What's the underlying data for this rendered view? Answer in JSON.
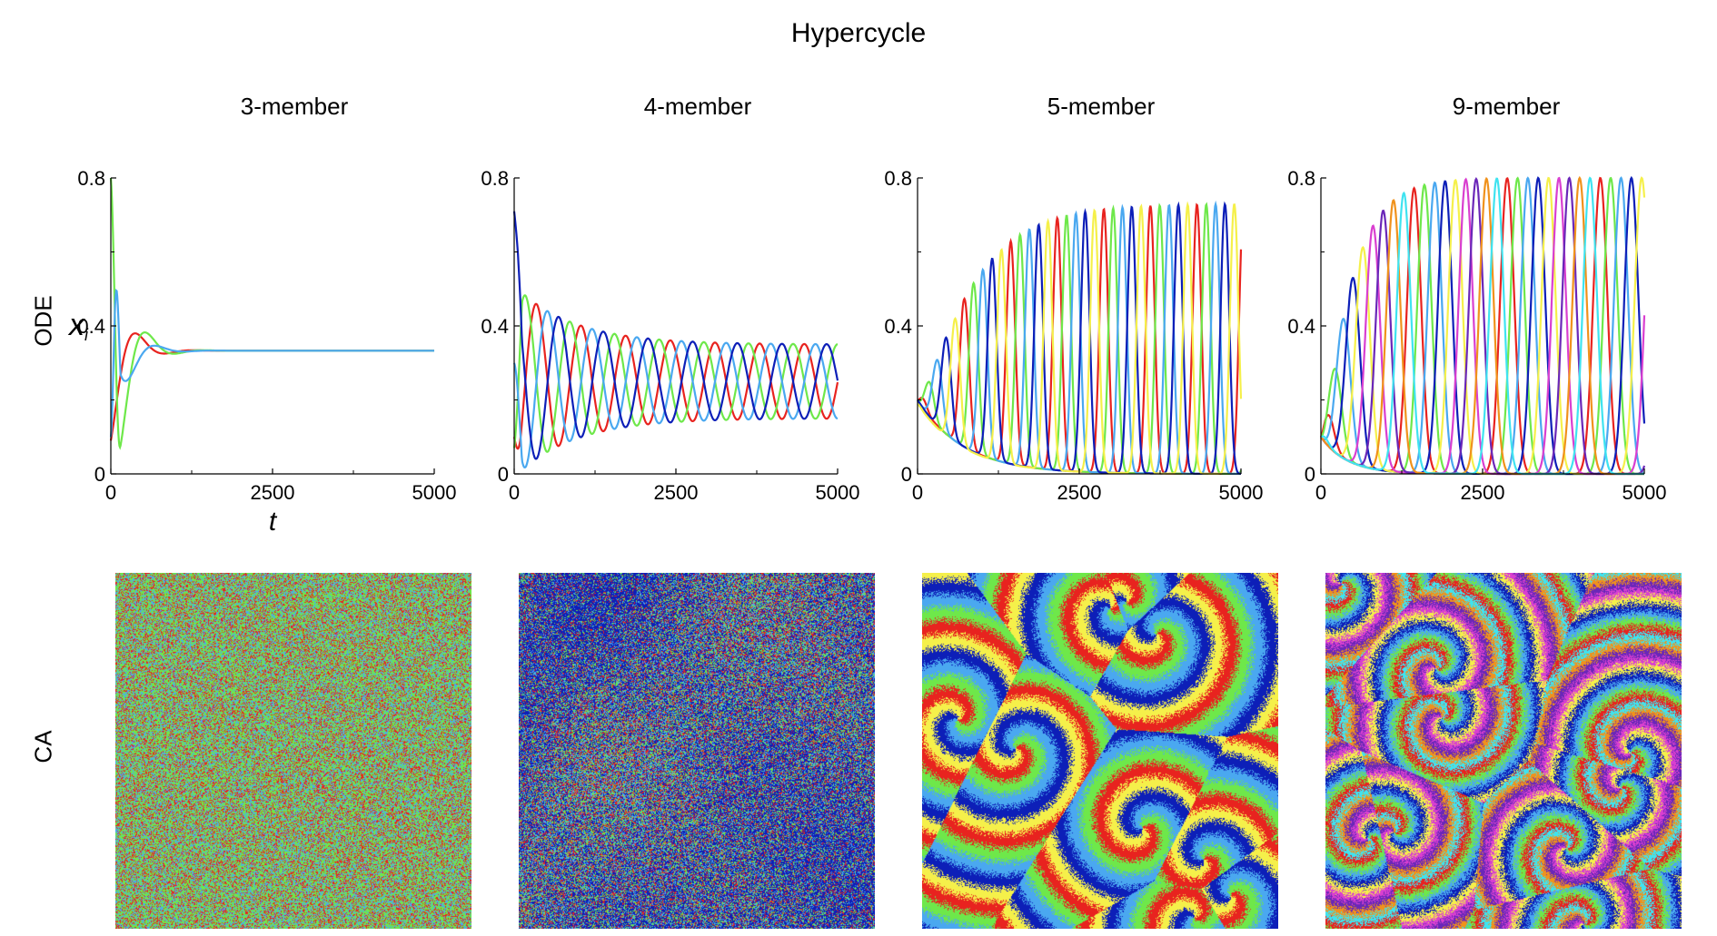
{
  "figure": {
    "title": "Hypercycle",
    "row_labels": [
      "ODE",
      "CA"
    ],
    "column_titles": [
      "3-member",
      "4-member",
      "5-member",
      "9-member"
    ],
    "axis": {
      "xlabel": "t",
      "ylabel": "x",
      "ylabel_sub": "i",
      "xticks": [
        "0",
        "2500",
        "5000"
      ],
      "yticks": [
        "0",
        "0.4",
        "0.8"
      ]
    }
  },
  "colors": {
    "red": "#e8231f",
    "green": "#6ee84a",
    "lightblue": "#4aa8f0",
    "darkblue": "#0d1fb8",
    "yellow": "#f5f04a",
    "magenta": "#d93fd0",
    "purple": "#6a27b8",
    "orange": "#f0921c",
    "cyan": "#3fe3f0"
  },
  "chart_data": [
    {
      "type": "line",
      "title": "3-member",
      "xlabel": "t",
      "ylabel": "x_i",
      "xlim": [
        0,
        5000
      ],
      "ylim": [
        0,
        0.8
      ],
      "members": 3,
      "series_colors": [
        "red",
        "green",
        "lightblue"
      ],
      "initial_values": [
        0.09,
        0.8,
        0.1
      ],
      "steady_state": 0.333,
      "peak_amplitude": 0.5,
      "damping_time": 250,
      "period": 900
    },
    {
      "type": "line",
      "title": "4-member",
      "xlabel": "",
      "ylabel": "",
      "xlim": [
        0,
        5000
      ],
      "ylim": [
        0,
        0.8
      ],
      "members": 4,
      "series_colors": [
        "red",
        "green",
        "lightblue",
        "darkblue"
      ],
      "initial_values": [
        0.1,
        0.07,
        0.3,
        0.71
      ],
      "early_peak": 0.51,
      "late_max": 0.35,
      "late_min": 0.15,
      "period": 690
    },
    {
      "type": "line",
      "title": "5-member",
      "xlabel": "",
      "ylabel": "",
      "xlim": [
        0,
        5000
      ],
      "ylim": [
        0,
        0.8
      ],
      "members": 5,
      "series_colors": [
        "red",
        "green",
        "lightblue",
        "darkblue",
        "yellow"
      ],
      "initial_values": [
        0.2,
        0.2,
        0.2,
        0.2,
        0.19
      ],
      "final_peak": 0.73,
      "growth_time": 1600,
      "period": 720
    },
    {
      "type": "line",
      "title": "9-member",
      "xlabel": "",
      "ylabel": "",
      "xlim": [
        0,
        5000
      ],
      "ylim": [
        0,
        0.8
      ],
      "members": 9,
      "series_colors": [
        "red",
        "green",
        "lightblue",
        "darkblue",
        "yellow",
        "magenta",
        "purple",
        "orange",
        "cyan"
      ],
      "initial_values": [
        0.1,
        0.1,
        0.1,
        0.1,
        0.1,
        0.1,
        0.1,
        0.1,
        0.1
      ],
      "final_peak": 0.8,
      "growth_time": 900,
      "period": 1440
    }
  ],
  "ca_panels": [
    {
      "title": "3-member",
      "pattern": "noise",
      "colors": [
        "red",
        "green",
        "lightblue"
      ]
    },
    {
      "title": "4-member",
      "pattern": "noise-patchy",
      "colors": [
        "red",
        "green",
        "lightblue",
        "darkblue"
      ]
    },
    {
      "title": "5-member",
      "pattern": "spirals",
      "colors": [
        "red",
        "green",
        "lightblue",
        "darkblue",
        "yellow"
      ]
    },
    {
      "title": "9-member",
      "pattern": "spirals",
      "colors": [
        "red",
        "green",
        "lightblue",
        "darkblue",
        "yellow",
        "magenta",
        "purple",
        "orange",
        "cyan"
      ]
    }
  ]
}
